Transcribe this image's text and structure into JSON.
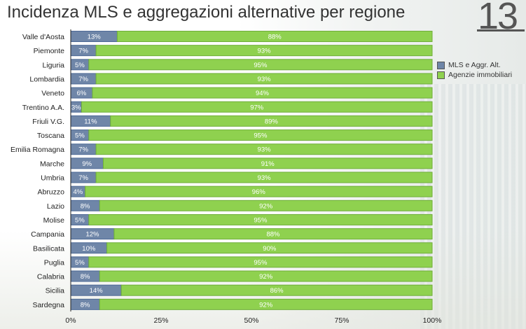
{
  "title": "Incidenza MLS e aggregazioni alternative per regione",
  "page_number": "13",
  "chart_data": {
    "type": "bar",
    "orientation": "horizontal",
    "stacked": true,
    "categories": [
      "Valle d'Aosta",
      "Piemonte",
      "Liguria",
      "Lombardia",
      "Veneto",
      "Trentino A.A.",
      "Friuli V.G.",
      "Toscana",
      "Emilia Romagna",
      "Marche",
      "Umbria",
      "Abruzzo",
      "Lazio",
      "Molise",
      "Campania",
      "Basilicata",
      "Puglia",
      "Calabria",
      "Sicilia",
      "Sardegna"
    ],
    "series": [
      {
        "name": "MLS e Aggr. Alt.",
        "color": "#6f86a8",
        "values": [
          13,
          7,
          5,
          7,
          6,
          3,
          11,
          5,
          7,
          9,
          7,
          4,
          8,
          5,
          12,
          10,
          5,
          8,
          14,
          8
        ]
      },
      {
        "name": "Agenzie immobiliari",
        "color": "#8fd14f",
        "values": [
          88,
          93,
          95,
          93,
          94,
          97,
          89,
          95,
          93,
          91,
          93,
          96,
          92,
          95,
          88,
          90,
          95,
          92,
          86,
          92
        ]
      }
    ],
    "xlim": [
      0,
      100
    ],
    "xticks": [
      "0%",
      "25%",
      "50%",
      "75%",
      "100%"
    ],
    "grid": false,
    "legend": "right"
  }
}
